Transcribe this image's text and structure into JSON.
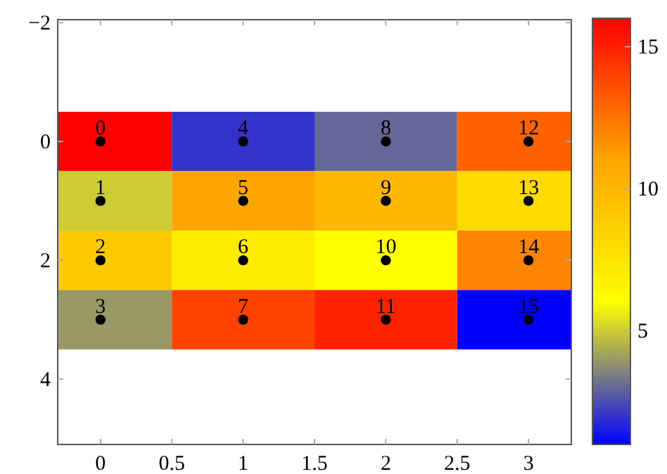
{
  "chart_data": [
    {
      "type": "heatmap",
      "categories": [
        null,
        null,
        null,
        null
      ],
      "y_categories": [
        null,
        null,
        null,
        null
      ],
      "cells": [
        [
          16,
          2,
          3,
          13
        ],
        [
          5,
          11,
          10,
          8
        ],
        [
          9,
          7,
          6,
          12
        ],
        [
          4,
          14,
          15,
          1
        ]
      ],
      "clim": [
        1,
        16
      ],
      "cticks": [
        5,
        10,
        15
      ]
    },
    {
      "type": "scatter",
      "color": "#000000",
      "marker": "circle",
      "x": [
        0,
        0,
        0,
        0,
        1,
        1,
        1,
        1,
        2,
        2,
        2,
        2,
        3,
        3,
        3,
        3
      ],
      "values": [
        0,
        1,
        2,
        3,
        0,
        1,
        2,
        3,
        0,
        1,
        2,
        3,
        0,
        1,
        2,
        3
      ],
      "xlim": [
        -0.3,
        3.3
      ],
      "xticks": [
        0,
        0.5,
        1,
        1.5,
        2,
        2.5,
        3
      ],
      "ylim": [
        5.1,
        -2.05
      ],
      "yticks": [
        {
          "value": -2,
          "label": "−2"
        },
        0,
        2,
        4
      ],
      "annotations": [
        {
          "text": "0",
          "x": 0,
          "y": 0
        },
        {
          "text": "1",
          "x": 0,
          "y": 1
        },
        {
          "text": "2",
          "x": 0,
          "y": 2
        },
        {
          "text": "3",
          "x": 0,
          "y": 3
        },
        {
          "text": "4",
          "x": 1,
          "y": 0
        },
        {
          "text": "5",
          "x": 1,
          "y": 1
        },
        {
          "text": "6",
          "x": 1,
          "y": 2
        },
        {
          "text": "7",
          "x": 1,
          "y": 3
        },
        {
          "text": "8",
          "x": 2,
          "y": 0
        },
        {
          "text": "9",
          "x": 2,
          "y": 1
        },
        {
          "text": "10",
          "x": 2,
          "y": 2
        },
        {
          "text": "11",
          "x": 2,
          "y": 3
        },
        {
          "text": "12",
          "x": 3,
          "y": 0
        },
        {
          "text": "13",
          "x": 3,
          "y": 1
        },
        {
          "text": "14",
          "x": 3,
          "y": 2
        },
        {
          "text": "15",
          "x": 3,
          "y": 3
        }
      ]
    }
  ]
}
